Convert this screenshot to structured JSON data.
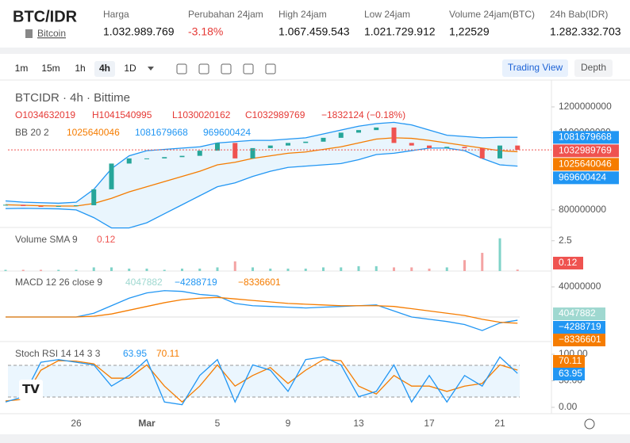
{
  "header": {
    "pair": "BTC/IDR",
    "asset": "Bitcoin",
    "stats": [
      {
        "label": "Harga",
        "value": "1.032.989.769"
      },
      {
        "label": "Perubahan 24jam",
        "value": "-3.18%"
      },
      {
        "label": "High 24jam",
        "value": "1.067.459.543"
      },
      {
        "label": "Low 24jam",
        "value": "1.021.729.912"
      },
      {
        "label": "Volume 24jam(BTC)",
        "value": "1,22529"
      },
      {
        "label": "24h Bab(IDR)",
        "value": "1.282.332.703"
      }
    ]
  },
  "toolbar": {
    "intervals": [
      "1m",
      "15m",
      "1h",
      "4h",
      "1D"
    ],
    "views": [
      "Trading View",
      "Depth"
    ]
  },
  "chart": {
    "title": "BTCIDR · 4h · Bittime",
    "ohlc": [
      "O1034632019",
      "H1041540995",
      "L1030020162",
      "C1032989769",
      "−1832124 (−0.18%)"
    ],
    "bb_label": "BB 20 2",
    "bb_values": [
      "1025640046",
      "1081679668",
      "969600424"
    ],
    "time_labels": [
      "26",
      "Mar",
      "5",
      "9",
      "13",
      "17",
      "21"
    ],
    "price": {
      "ylim": [
        738000000,
        1289000000
      ],
      "yticks": [
        1200000000,
        1100000000,
        800000000
      ],
      "tags": [
        {
          "value": 1081679668,
          "color": "#2196f3"
        },
        {
          "value": 1032989769,
          "color": "#ef5350"
        },
        {
          "value": 1025640046,
          "color": "#f57c00"
        },
        {
          "value": 969600424,
          "color": "#2196f3"
        }
      ],
      "closes": [
        820000000,
        815000000,
        812000000,
        815000000,
        818000000,
        880000000,
        980000000,
        1000000000,
        1000000000,
        1005000000,
        1010000000,
        1030000000,
        1060000000,
        1000000000,
        1040000000,
        1050000000,
        1060000000,
        1065000000,
        1080000000,
        1100000000,
        1110000000,
        1120000000,
        1060000000,
        1050000000,
        1040000000,
        1045000000,
        1040000000,
        1000000000,
        1050000000,
        1033000000
      ],
      "bb_mid": [
        820000000,
        818000000,
        816000000,
        815000000,
        815000000,
        825000000,
        845000000,
        870000000,
        890000000,
        910000000,
        930000000,
        950000000,
        975000000,
        985000000,
        1000000000,
        1010000000,
        1020000000,
        1025000000,
        1035000000,
        1045000000,
        1060000000,
        1075000000,
        1080000000,
        1078000000,
        1070000000,
        1060000000,
        1050000000,
        1040000000,
        1030000000,
        1026000000
      ],
      "bb_upper": [
        835000000,
        830000000,
        828000000,
        826000000,
        830000000,
        880000000,
        960000000,
        1010000000,
        1030000000,
        1035000000,
        1040000000,
        1045000000,
        1060000000,
        1065000000,
        1070000000,
        1070000000,
        1075000000,
        1080000000,
        1095000000,
        1110000000,
        1125000000,
        1135000000,
        1140000000,
        1130000000,
        1110000000,
        1090000000,
        1085000000,
        1080000000,
        1082000000,
        1082000000
      ],
      "bb_lower": [
        805000000,
        806000000,
        805000000,
        804000000,
        800000000,
        770000000,
        730000000,
        730000000,
        750000000,
        785000000,
        820000000,
        855000000,
        890000000,
        905000000,
        930000000,
        950000000,
        965000000,
        970000000,
        975000000,
        980000000,
        995000000,
        1015000000,
        1020000000,
        1030000000,
        1040000000,
        1040000000,
        1030000000,
        1000000000,
        975000000,
        970000000
      ]
    },
    "volume": {
      "label": "Volume SMA 9",
      "sma": "0.12",
      "ylim": [
        0,
        3.4
      ],
      "yticks": [
        2.5
      ],
      "values": [
        0.1,
        0.1,
        0.1,
        0.1,
        0.1,
        0.3,
        0.3,
        0.2,
        0.2,
        0.1,
        0.2,
        0.2,
        0.3,
        0.8,
        0.3,
        0.2,
        0.2,
        0.2,
        0.3,
        0.3,
        0.4,
        0.4,
        0.3,
        0.3,
        0.2,
        0.3,
        0.9,
        1.5,
        2.7,
        0.12
      ]
    },
    "macd": {
      "label": "MACD 12 26 close 9",
      "hist_value": 4047882,
      "macd_value": "−4288719",
      "signal_value": "−8336601",
      "ylim": [
        -29500000,
        57900000
      ],
      "yticks": [
        40000000
      ],
      "macd": [
        0,
        0,
        0,
        0,
        0,
        5000000,
        15000000,
        25000000,
        32000000,
        35000000,
        34000000,
        30000000,
        28000000,
        18000000,
        15000000,
        14000000,
        13000000,
        12000000,
        13000000,
        14000000,
        15000000,
        16000000,
        8000000,
        0,
        -3000000,
        -6000000,
        -10000000,
        -18000000,
        -8000000,
        -4288719
      ],
      "signal": [
        0,
        0,
        0,
        0,
        0,
        1000000,
        4000000,
        9000000,
        14000000,
        19000000,
        23000000,
        25000000,
        26000000,
        24000000,
        22000000,
        20000000,
        18000000,
        17000000,
        16000000,
        15000000,
        15000000,
        15000000,
        14000000,
        11000000,
        8000000,
        5000000,
        2000000,
        -3000000,
        -7000000,
        -8336601
      ]
    },
    "stoch": {
      "label": "Stoch RSI 14 14 3 3",
      "k_value": 63.95,
      "d_value": 70.11,
      "ylim": [
        -9,
        118
      ],
      "yticks": [
        {
          "value": 0,
          "label": "0.00"
        },
        {
          "value": 50,
          "label": "50.00"
        },
        {
          "value": 100,
          "label": "100.00"
        }
      ],
      "k": [
        10,
        20,
        85,
        90,
        85,
        80,
        40,
        60,
        90,
        10,
        5,
        60,
        90,
        10,
        80,
        70,
        30,
        90,
        95,
        80,
        20,
        30,
        80,
        10,
        60,
        10,
        60,
        40,
        95,
        63.95
      ],
      "d": [
        12,
        15,
        70,
        88,
        87,
        82,
        55,
        55,
        80,
        40,
        10,
        40,
        80,
        40,
        60,
        75,
        45,
        70,
        90,
        88,
        40,
        25,
        60,
        40,
        40,
        30,
        40,
        45,
        80,
        70.11
      ]
    }
  }
}
